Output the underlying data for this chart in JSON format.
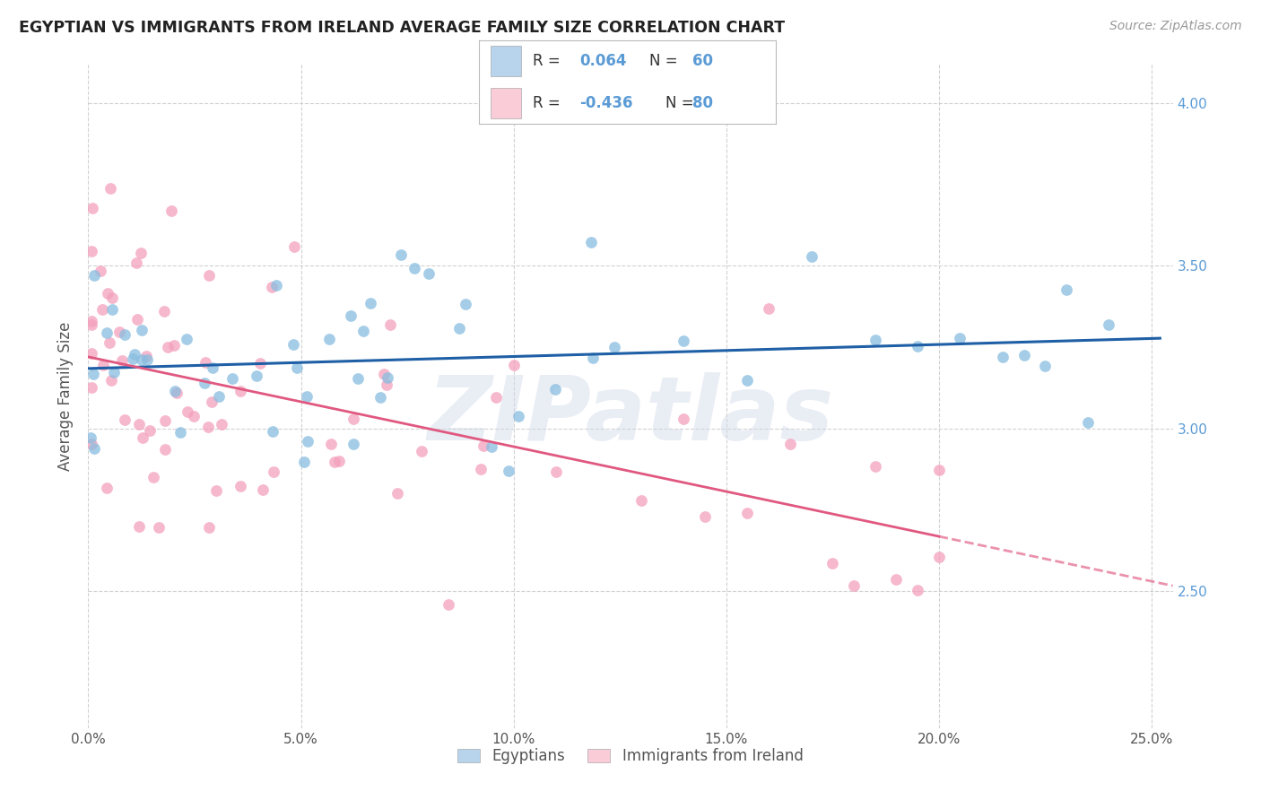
{
  "title": "EGYPTIAN VS IMMIGRANTS FROM IRELAND AVERAGE FAMILY SIZE CORRELATION CHART",
  "source": "Source: ZipAtlas.com",
  "ylabel": "Average Family Size",
  "right_yticklabels": [
    "2.50",
    "3.00",
    "3.50",
    "4.00"
  ],
  "right_ytick_vals": [
    2.5,
    3.0,
    3.5,
    4.0
  ],
  "xlim": [
    0.0,
    0.255
  ],
  "ylim": [
    2.08,
    4.12
  ],
  "blue_color": "#89bde0",
  "pink_color": "#f4a0bc",
  "blue_line_color": "#1f5fa6",
  "pink_line_color": "#e05880",
  "blue_fill": "#b8d4ed",
  "pink_fill": "#f9ccd8",
  "watermark": "ZIPatlas",
  "legend_entries": [
    "Egyptians",
    "Immigrants from Ireland"
  ],
  "blue_R": 0.064,
  "blue_N": 60,
  "pink_R": -0.436,
  "pink_N": 80
}
